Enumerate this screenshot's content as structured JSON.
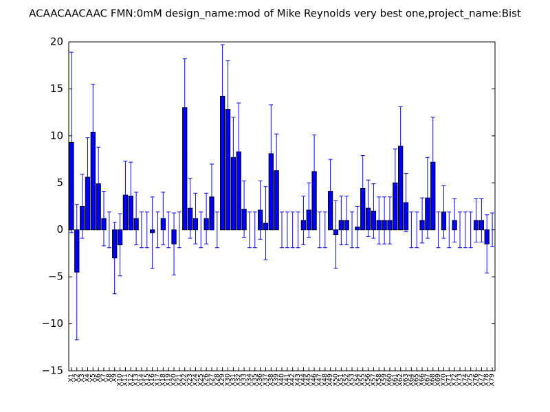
{
  "chart_data": {
    "type": "bar",
    "title": "ACAACAACAAC  FMN:0mM  design_name:mod of Mike Reynolds very best one,project_name:Bist",
    "categories": [
      "X1",
      "X2",
      "X3",
      "X4",
      "X5",
      "X6",
      "X7",
      "X8",
      "X9",
      "X10",
      "X11",
      "X12",
      "X13",
      "X14",
      "X15",
      "X16",
      "X17",
      "X18",
      "X19",
      "X20",
      "X21",
      "X22",
      "X23",
      "X24",
      "X25",
      "X26",
      "X27",
      "X28",
      "X29",
      "X30",
      "X31",
      "X32",
      "X33",
      "X34",
      "X35",
      "X36",
      "X37",
      "X38",
      "X39",
      "X40",
      "X41",
      "X42",
      "X43",
      "X44",
      "X45",
      "X46",
      "X47",
      "X48",
      "X49",
      "X50",
      "X51",
      "X52",
      "X53",
      "X54",
      "X55",
      "X56",
      "X57",
      "X58",
      "X59",
      "X60",
      "X61",
      "X62",
      "X63",
      "X64",
      "X65",
      "X66",
      "X67",
      "X68",
      "X69",
      "X70",
      "X71",
      "X72",
      "X73",
      "X74",
      "X75",
      "X76",
      "X77",
      "X78",
      "X79"
    ],
    "values": [
      9.3,
      -4.5,
      2.5,
      5.6,
      10.4,
      4.9,
      1.2,
      0,
      -3.0,
      -1.6,
      3.7,
      3.6,
      1.2,
      0,
      0,
      -0.3,
      0,
      1.2,
      0,
      -1.5,
      0,
      13.0,
      2.3,
      1.2,
      0,
      1.2,
      3.5,
      0,
      14.2,
      12.8,
      7.7,
      8.3,
      2.2,
      0,
      0,
      2.1,
      0.7,
      8.1,
      6.3,
      0,
      0,
      0,
      0,
      1.0,
      2.1,
      6.2,
      0,
      0,
      4.1,
      -0.5,
      1.0,
      1.0,
      0,
      0.3,
      4.4,
      2.3,
      2.0,
      1.0,
      1.0,
      1.0,
      5.0,
      8.9,
      2.9,
      0,
      0,
      1.0,
      3.4,
      7.2,
      0,
      1.9,
      0,
      1.0,
      0,
      0,
      0,
      1.0,
      1.0,
      -1.5,
      0
    ],
    "errors": [
      9.6,
      7.2,
      3.4,
      4.2,
      5.1,
      3.9,
      2.9,
      1.9,
      3.8,
      3.3,
      3.6,
      3.6,
      2.8,
      1.9,
      1.9,
      3.8,
      1.9,
      2.8,
      1.9,
      3.3,
      1.9,
      5.2,
      3.2,
      2.7,
      1.9,
      2.7,
      3.5,
      1.9,
      5.5,
      5.2,
      4.3,
      5.2,
      3.0,
      1.9,
      1.9,
      3.1,
      3.9,
      5.2,
      3.9,
      1.9,
      1.9,
      1.9,
      1.9,
      2.6,
      2.9,
      3.9,
      1.9,
      1.9,
      3.4,
      3.6,
      2.6,
      2.6,
      1.9,
      2.2,
      3.5,
      3.0,
      2.9,
      2.5,
      2.5,
      2.5,
      3.6,
      4.2,
      3.1,
      1.9,
      1.9,
      2.4,
      4.3,
      4.8,
      1.9,
      2.8,
      1.9,
      2.3,
      1.9,
      1.9,
      1.9,
      2.3,
      2.3,
      3.1,
      1.8
    ],
    "color": "#0000ff",
    "ylim": [
      -15,
      20
    ],
    "yticks": [
      {
        "value": -15,
        "label": "−15"
      },
      {
        "value": -10,
        "label": "−10"
      },
      {
        "value": -5,
        "label": "−5"
      },
      0,
      5,
      10,
      15,
      20
    ]
  }
}
